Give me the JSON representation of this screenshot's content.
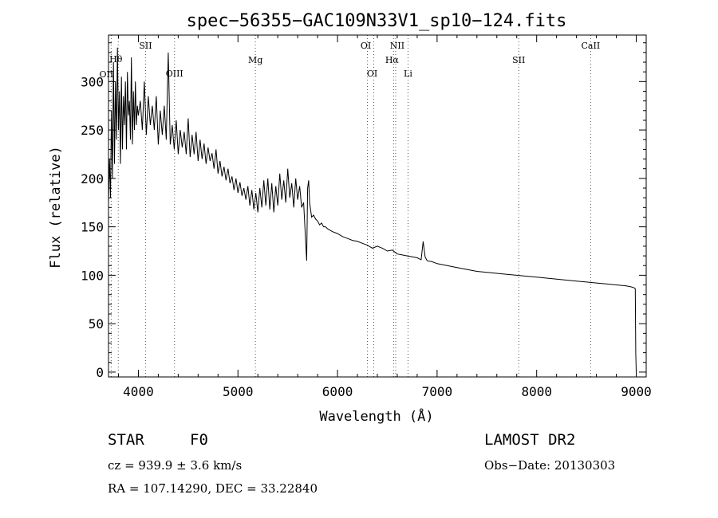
{
  "chart_data": {
    "type": "line",
    "title": "spec−56355−GAC109N33V1_sp10−124.fits",
    "xlabel": "Wavelength (Å)",
    "ylabel": "Flux (relative)",
    "xlim": [
      3700,
      9100
    ],
    "ylim": [
      -5,
      348
    ],
    "xticks": [
      4000,
      5000,
      6000,
      7000,
      8000,
      9000
    ],
    "yticks": [
      0,
      50,
      100,
      150,
      200,
      250,
      300
    ],
    "grid": false,
    "series": [
      {
        "x": [
          3700,
          3710,
          3720,
          3730,
          3740,
          3750,
          3760,
          3770,
          3780,
          3790,
          3800,
          3810,
          3820,
          3830,
          3840,
          3850,
          3860,
          3870,
          3880,
          3890,
          3900,
          3910,
          3920,
          3930,
          3940,
          3950,
          3960,
          3970,
          3980,
          3990,
          4000,
          4020,
          4040,
          4060,
          4080,
          4100,
          4120,
          4140,
          4160,
          4180,
          4200,
          4220,
          4240,
          4260,
          4280,
          4300,
          4320,
          4340,
          4360,
          4380,
          4400,
          4420,
          4440,
          4460,
          4480,
          4500,
          4520,
          4540,
          4560,
          4580,
          4600,
          4620,
          4640,
          4660,
          4680,
          4700,
          4720,
          4740,
          4760,
          4780,
          4800,
          4820,
          4840,
          4860,
          4880,
          4900,
          4920,
          4940,
          4960,
          4980,
          5000,
          5020,
          5040,
          5060,
          5080,
          5100,
          5120,
          5140,
          5160,
          5180,
          5200,
          5220,
          5240,
          5260,
          5280,
          5300,
          5320,
          5340,
          5360,
          5380,
          5400,
          5420,
          5440,
          5460,
          5480,
          5500,
          5520,
          5540,
          5560,
          5580,
          5600,
          5620,
          5640,
          5660,
          5680,
          5690,
          5700,
          5710,
          5720,
          5740,
          5760,
          5780,
          5800,
          5820,
          5840,
          5860,
          5880,
          5900,
          5950,
          6000,
          6050,
          6100,
          6150,
          6200,
          6250,
          6300,
          6350,
          6400,
          6450,
          6500,
          6550,
          6600,
          6650,
          6700,
          6750,
          6800,
          6840,
          6860,
          6880,
          6900,
          6950,
          7000,
          7100,
          7200,
          7300,
          7400,
          7500,
          7600,
          7700,
          7800,
          7900,
          8000,
          8100,
          8200,
          8300,
          8400,
          8500,
          8600,
          8700,
          8800,
          8900,
          8950,
          8980,
          8990,
          8995,
          9000
        ],
        "y": [
          175,
          220,
          180,
          270,
          200,
          320,
          215,
          300,
          240,
          335,
          250,
          290,
          215,
          305,
          230,
          285,
          255,
          300,
          230,
          310,
          265,
          280,
          240,
          325,
          235,
          290,
          250,
          300,
          255,
          275,
          265,
          280,
          250,
          300,
          245,
          285,
          255,
          275,
          250,
          285,
          235,
          270,
          245,
          275,
          240,
          330,
          235,
          255,
          230,
          260,
          225,
          250,
          232,
          248,
          225,
          262,
          222,
          245,
          225,
          248,
          218,
          240,
          220,
          236,
          215,
          232,
          218,
          226,
          210,
          230,
          205,
          218,
          202,
          212,
          198,
          210,
          195,
          202,
          188,
          200,
          185,
          196,
          182,
          190,
          178,
          192,
          172,
          188,
          168,
          185,
          165,
          190,
          170,
          198,
          172,
          200,
          168,
          195,
          165,
          192,
          172,
          205,
          178,
          198,
          175,
          210,
          180,
          195,
          170,
          200,
          178,
          192,
          170,
          175,
          135,
          115,
          190,
          198,
          175,
          160,
          162,
          158,
          156,
          152,
          154,
          150,
          150,
          148,
          145,
          143,
          140,
          138,
          136,
          135,
          133,
          131,
          128,
          130,
          128,
          125,
          126,
          122,
          121,
          120,
          119,
          118,
          116,
          135,
          119,
          115,
          114,
          112,
          110,
          108,
          106,
          104,
          103,
          102,
          101,
          100,
          99,
          98,
          97,
          96,
          95,
          94,
          93,
          92,
          91,
          90,
          89,
          88,
          87,
          86,
          20,
          0
        ]
      }
    ],
    "lines": [
      {
        "label": "OII",
        "x": 3727
      },
      {
        "label": "Hθ",
        "x": 3798
      },
      {
        "label": "SII",
        "x": 4072
      },
      {
        "label": "OIII",
        "x": 4363
      },
      {
        "label": "Mg",
        "x": 5175
      },
      {
        "label": "OI",
        "x": 6300
      },
      {
        "label": "OI",
        "x": 6364
      },
      {
        "label": "Hα",
        "x": 6563
      },
      {
        "label": "NII",
        "x": 6584
      },
      {
        "label": "Li",
        "x": 6708
      },
      {
        "label": "SII",
        "x": 7820
      },
      {
        "label": "CaII",
        "x": 8542
      }
    ]
  },
  "info": {
    "object_type": "STAR",
    "subclass": "F0",
    "survey": "LAMOST DR2",
    "redshift": "cz = 939.9 ± 3.6 km/s",
    "obs_date": "Obs−Date: 20130303",
    "coords": "RA = 107.14290, DEC =  33.22840"
  }
}
